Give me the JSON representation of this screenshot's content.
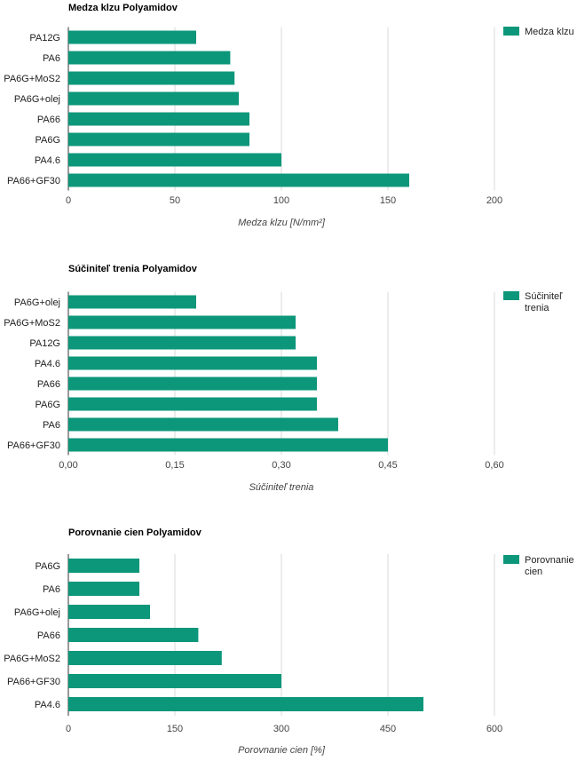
{
  "bar_color": "#0c977a",
  "chart_data": [
    {
      "type": "bar",
      "orientation": "horizontal",
      "title": "Medza klzu Polyamidov",
      "xlabel": "Medza klzu [N/mm²]",
      "ylabel": "",
      "legend_position": "top-right",
      "legend_lines": [
        "Medza klzu"
      ],
      "categories": [
        "PA12G",
        "PA6",
        "PA6G+MoS2",
        "PA6G+olej",
        "PA66",
        "PA6G",
        "PA4.6",
        "PA66+GF30"
      ],
      "series": [
        {
          "name": "Medza klzu",
          "values": [
            60,
            76,
            78,
            80,
            85,
            85,
            100,
            160
          ]
        }
      ],
      "xlim": [
        0,
        200
      ],
      "ticks": [
        0,
        50,
        100,
        150,
        200
      ],
      "tick_labels": [
        "0",
        "50",
        "100",
        "150",
        "200"
      ],
      "grid": true
    },
    {
      "type": "bar",
      "orientation": "horizontal",
      "title": "Súčiniteľ trenia Polyamidov",
      "xlabel": "Súčiniteľ trenia",
      "ylabel": "",
      "legend_position": "top-right",
      "legend_lines": [
        "Súčiniteľ",
        "trenia"
      ],
      "categories": [
        "PA6G+olej",
        "PA6G+MoS2",
        "PA12G",
        "PA4.6",
        "PA66",
        "PA6G",
        "PA6",
        "PA66+GF30"
      ],
      "series": [
        {
          "name": "Súčiniteľ trenia",
          "values": [
            0.18,
            0.32,
            0.32,
            0.35,
            0.35,
            0.35,
            0.38,
            0.45
          ]
        }
      ],
      "xlim": [
        0,
        0.6
      ],
      "ticks": [
        0,
        0.15,
        0.3,
        0.45,
        0.6
      ],
      "tick_labels": [
        "0,00",
        "0,15",
        "0,30",
        "0,45",
        "0,60"
      ],
      "grid": true
    },
    {
      "type": "bar",
      "orientation": "horizontal",
      "title": "Porovnanie cien Polyamidov",
      "xlabel": "Porovnanie cien [%]",
      "ylabel": "",
      "legend_position": "top-right",
      "legend_lines": [
        "Porovnanie",
        "cien"
      ],
      "categories": [
        "PA6G",
        "PA6",
        "PA6G+olej",
        "PA66",
        "PA6G+MoS2",
        "PA66+GF30",
        "PA4.6"
      ],
      "series": [
        {
          "name": "Porovnanie cien",
          "values": [
            100,
            100,
            115,
            183,
            216,
            300,
            500
          ]
        }
      ],
      "xlim": [
        0,
        600
      ],
      "ticks": [
        0,
        150,
        300,
        450,
        600
      ],
      "tick_labels": [
        "0",
        "150",
        "300",
        "450",
        "600"
      ],
      "grid": true
    }
  ]
}
